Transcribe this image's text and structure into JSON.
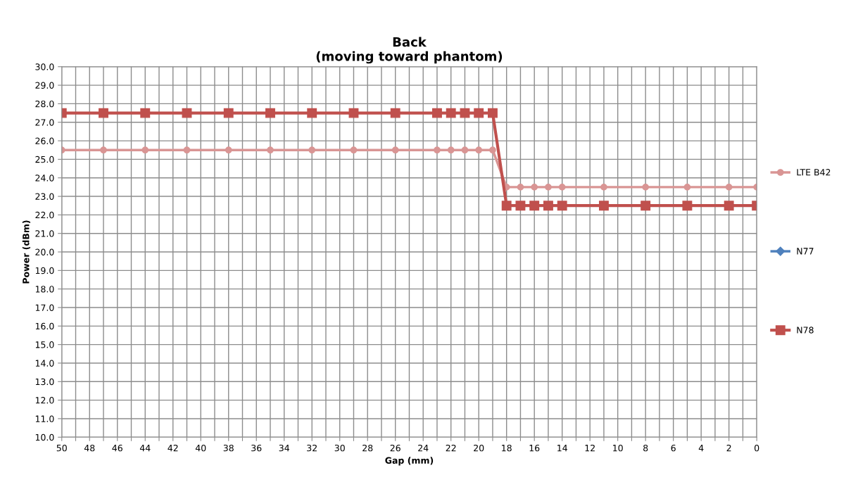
{
  "chart_data": {
    "type": "line",
    "title": "Back\n(moving toward phantom)",
    "xlabel": "Gap (mm)",
    "ylabel": "Power (dBm)",
    "x": [
      50,
      47,
      44,
      41,
      38,
      35,
      32,
      29,
      26,
      23,
      22,
      21,
      20,
      19,
      18,
      17,
      16,
      15,
      14,
      11,
      8,
      5,
      2,
      0
    ],
    "series": [
      {
        "name": "LTE B42",
        "color": "#d99594",
        "marker": "circle",
        "values": [
          25.5,
          25.5,
          25.5,
          25.5,
          25.5,
          25.5,
          25.5,
          25.5,
          25.5,
          25.5,
          25.5,
          25.5,
          25.5,
          25.5,
          23.5,
          23.5,
          23.5,
          23.5,
          23.5,
          23.5,
          23.5,
          23.5,
          23.5,
          23.5
        ]
      },
      {
        "name": "N77",
        "color": "#4f81bd",
        "marker": "diamond",
        "values": [
          null,
          null,
          null,
          null,
          null,
          null,
          null,
          null,
          null,
          null,
          null,
          null,
          null,
          null,
          null,
          null,
          null,
          null,
          null,
          null,
          null,
          null,
          null,
          null
        ]
      },
      {
        "name": "N78",
        "color": "#c0504d",
        "marker": "square",
        "values": [
          27.5,
          27.5,
          27.5,
          27.5,
          27.5,
          27.5,
          27.5,
          27.5,
          27.5,
          27.5,
          27.5,
          27.5,
          27.5,
          27.5,
          22.5,
          22.5,
          22.5,
          22.5,
          22.5,
          22.5,
          22.5,
          22.5,
          22.5,
          22.5
        ]
      }
    ],
    "xlim": [
      50,
      0
    ],
    "xticks": [
      50,
      {
        "value": 49,
        "label": null
      },
      48,
      {
        "value": 47,
        "label": null
      },
      46,
      {
        "value": 45,
        "label": null
      },
      44,
      {
        "value": 43,
        "label": null
      },
      42,
      {
        "value": 41,
        "label": null
      },
      40,
      {
        "value": 39,
        "label": null
      },
      38,
      {
        "value": 37,
        "label": null
      },
      36,
      {
        "value": 35,
        "label": null
      },
      34,
      {
        "value": 33,
        "label": null
      },
      32,
      {
        "value": 31,
        "label": null
      },
      30,
      {
        "value": 29,
        "label": null
      },
      28,
      {
        "value": 27,
        "label": null
      },
      26,
      {
        "value": 25,
        "label": null
      },
      24,
      {
        "value": 23,
        "label": null
      },
      22,
      {
        "value": 21,
        "label": null
      },
      20,
      {
        "value": 19,
        "label": null
      },
      18,
      {
        "value": 17,
        "label": null
      },
      16,
      {
        "value": 15,
        "label": null
      },
      14,
      {
        "value": 13,
        "label": null
      },
      12,
      {
        "value": 11,
        "label": null
      },
      10,
      {
        "value": 9,
        "label": null
      },
      8,
      {
        "value": 7,
        "label": null
      },
      6,
      {
        "value": 5,
        "label": null
      },
      4,
      {
        "value": 3,
        "label": null
      },
      2,
      {
        "value": 1,
        "label": null
      },
      0
    ],
    "ylim": [
      10,
      30
    ],
    "yticks": [
      {
        "value": 10,
        "label": "10.0"
      },
      {
        "value": 11,
        "label": "11.0"
      },
      {
        "value": 12,
        "label": "12.0"
      },
      {
        "value": 13,
        "label": "13.0"
      },
      {
        "value": 14,
        "label": "14.0"
      },
      {
        "value": 15,
        "label": "15.0"
      },
      {
        "value": 16,
        "label": "16.0"
      },
      {
        "value": 17,
        "label": "17.0"
      },
      {
        "value": 18,
        "label": "18.0"
      },
      {
        "value": 19,
        "label": "19.0"
      },
      {
        "value": 20,
        "label": "20.0"
      },
      {
        "value": 21,
        "label": "21.0"
      },
      {
        "value": 22,
        "label": "22.0"
      },
      {
        "value": 23,
        "label": "23.0"
      },
      {
        "value": 24,
        "label": "24.0"
      },
      {
        "value": 25,
        "label": "25.0"
      },
      {
        "value": 26,
        "label": "26.0"
      },
      {
        "value": 27,
        "label": "27.0"
      },
      {
        "value": 28,
        "label": "28.0"
      },
      {
        "value": 29,
        "label": "29.0"
      },
      {
        "value": 30,
        "label": "30.0"
      }
    ],
    "grid": true,
    "legend": "right"
  }
}
